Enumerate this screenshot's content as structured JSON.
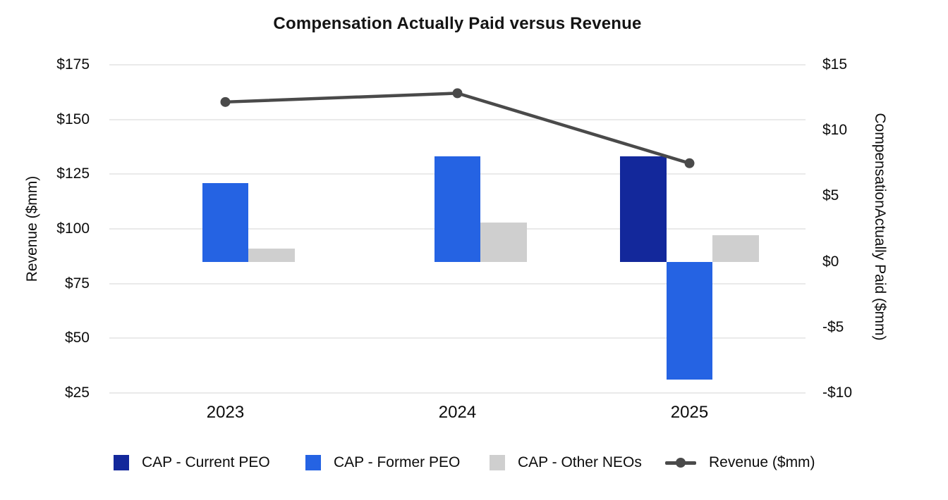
{
  "title": "Compensation Actually Paid versus Revenue",
  "chart_data": {
    "type": "bar+line combo",
    "categories": [
      "2023",
      "2024",
      "2025"
    ],
    "bar_series": [
      {
        "name": "CAP - Current PEO",
        "color": "#13289B",
        "axis": "right",
        "values": [
          null,
          null,
          8
        ]
      },
      {
        "name": "CAP - Former PEO",
        "color": "#2563E3",
        "axis": "right",
        "values": [
          6,
          8,
          -9
        ]
      },
      {
        "name": "CAP - Other NEOs",
        "color": "#CFCFCF",
        "axis": "right",
        "values": [
          1,
          3,
          2
        ]
      }
    ],
    "line_series": {
      "name": "Revenue ($mm)",
      "color": "#4A4A4A",
      "axis": "left",
      "values": [
        158,
        162,
        130
      ]
    },
    "left_axis": {
      "title": "Revenue ($mm)",
      "min": 25,
      "max": 175,
      "step": 25,
      "ticks": [
        "$175",
        "$150",
        "$125",
        "$100",
        "$75",
        "$50",
        "$25"
      ]
    },
    "right_axis": {
      "title": "CompensationActually Paid ($mm)",
      "min": -10,
      "max": 15,
      "step": 5,
      "ticks": [
        "$15",
        "$10",
        "$5",
        "$0",
        "-$5",
        "-$10"
      ]
    },
    "grid": true,
    "legend_position": "bottom",
    "background": "#FFFFFF",
    "gridline_color": "#EAEAEA"
  }
}
